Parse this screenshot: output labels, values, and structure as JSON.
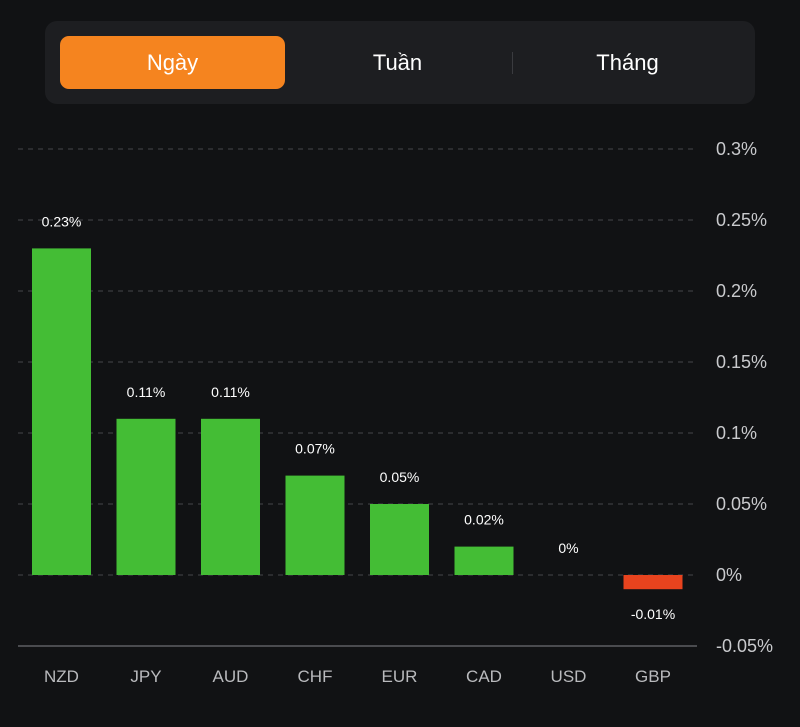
{
  "segmented_control": {
    "options": [
      {
        "label": "Ngày",
        "active": true
      },
      {
        "label": "Tuần",
        "active": false
      },
      {
        "label": "Tháng",
        "active": false
      }
    ],
    "active_color": "#f5841f"
  },
  "chart_data": {
    "type": "bar",
    "title": "",
    "xlabel": "",
    "ylabel": "",
    "categories": [
      "NZD",
      "JPY",
      "AUD",
      "CHF",
      "EUR",
      "CAD",
      "USD",
      "GBP"
    ],
    "values": [
      0.23,
      0.11,
      0.11,
      0.07,
      0.05,
      0.02,
      0,
      -0.01
    ],
    "data_labels": [
      "0.23%",
      "0.11%",
      "0.11%",
      "0.07%",
      "0.05%",
      "0.02%",
      "0%",
      "-0.01%"
    ],
    "unit": "%",
    "ylim": [
      -0.05,
      0.3
    ],
    "yticks": [
      0.3,
      0.25,
      0.2,
      0.15,
      0.1,
      0.05,
      0,
      -0.05
    ],
    "ytick_labels": [
      "0.3%",
      "0.25%",
      "0.2%",
      "0.15%",
      "0.1%",
      "0.05%",
      "0%",
      "-0.05%"
    ],
    "y_axis_position": "right",
    "grid": true,
    "legend": "none",
    "colors": {
      "positive": "#44bd35",
      "negative": "#e8431e"
    }
  }
}
